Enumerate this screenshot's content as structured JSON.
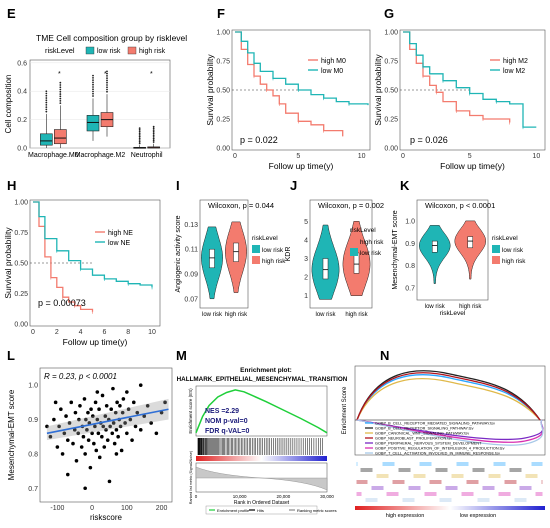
{
  "panel_labels": [
    "E",
    "F",
    "G",
    "H",
    "I",
    "J",
    "K",
    "L",
    "M",
    "N"
  ],
  "colors": {
    "teal": "#1fb5b5",
    "salmon": "#f37b6e",
    "blue": "#2f6fd6",
    "green": "#1fcf3a",
    "red_bar": "#d23a3a",
    "gray_fill": "#c8c8c8"
  },
  "chart_data": [
    {
      "panel": "E",
      "type": "box",
      "title": "TME Cell composition group by risklevel",
      "legend_title": "riskLevel",
      "legend": [
        "low risk",
        "high risk"
      ],
      "ylabel": "Cell composition",
      "categories": [
        "Macrophage.M0",
        "Macrophage.M2",
        "Neutrophil"
      ],
      "yticks": [
        "0.0",
        "0.2",
        "0.4",
        "0.6"
      ],
      "ylim": [
        0,
        0.62
      ],
      "series": [
        {
          "name": "low risk",
          "boxes": [
            {
              "min": 0,
              "q1": 0.02,
              "median": 0.05,
              "q3": 0.1,
              "max": 0.24
            },
            {
              "min": 0.05,
              "q1": 0.12,
              "median": 0.18,
              "q3": 0.23,
              "max": 0.35
            },
            {
              "min": 0,
              "q1": 0,
              "median": 0,
              "q3": 0.005,
              "max": 0.02
            }
          ]
        },
        {
          "name": "high risk",
          "boxes": [
            {
              "min": 0,
              "q1": 0.03,
              "median": 0.07,
              "q3": 0.13,
              "max": 0.3
            },
            {
              "min": 0.08,
              "q1": 0.15,
              "median": 0.2,
              "q3": 0.25,
              "max": 0.38
            },
            {
              "min": 0,
              "q1": 0,
              "median": 0.002,
              "q3": 0.008,
              "max": 0.03
            }
          ]
        }
      ]
    },
    {
      "panel": "F",
      "type": "line",
      "ylabel": "Survival probability",
      "xlabel": "Follow up time(y)",
      "xticks": [
        "0",
        "5",
        "10"
      ],
      "yticks": [
        "0.00",
        "0.25",
        "0.50",
        "0.75",
        "1.00"
      ],
      "xlim": [
        0,
        10.5
      ],
      "ylim": [
        0,
        1
      ],
      "pvalue": "p = 0.022",
      "series": [
        {
          "name": "high M0",
          "color": "salmon",
          "x": [
            0,
            0.5,
            1,
            1.5,
            2,
            2.5,
            3,
            3.5,
            4,
            5,
            6,
            7,
            8.5
          ],
          "y": [
            1,
            0.85,
            0.72,
            0.62,
            0.55,
            0.5,
            0.45,
            0.38,
            0.3,
            0.23,
            0.2,
            0.15,
            0.1
          ]
        },
        {
          "name": "low M0",
          "color": "teal",
          "x": [
            0,
            0.5,
            1,
            1.5,
            2,
            3,
            4,
            5,
            6,
            7,
            8,
            9,
            10.5
          ],
          "y": [
            1,
            0.92,
            0.82,
            0.73,
            0.66,
            0.6,
            0.55,
            0.5,
            0.46,
            0.43,
            0.4,
            0.38,
            0.37
          ]
        }
      ]
    },
    {
      "panel": "G",
      "type": "line",
      "ylabel": "Survival probability",
      "xlabel": "Follow up time(y)",
      "xticks": [
        "0",
        "5",
        "10"
      ],
      "yticks": [
        "0.00",
        "0.25",
        "0.50",
        "0.75",
        "1.00"
      ],
      "xlim": [
        0,
        10.5
      ],
      "ylim": [
        0,
        1
      ],
      "pvalue": "p = 0.026",
      "series": [
        {
          "name": "high M2",
          "color": "salmon",
          "x": [
            0,
            0.5,
            1,
            1.5,
            2,
            2.5,
            3,
            4,
            5,
            6,
            7,
            8
          ],
          "y": [
            1,
            0.85,
            0.73,
            0.62,
            0.54,
            0.48,
            0.4,
            0.32,
            0.28,
            0.25,
            0.25,
            0.22
          ]
        },
        {
          "name": "low M2",
          "color": "teal",
          "x": [
            0,
            0.5,
            1,
            1.5,
            2,
            3,
            4,
            5,
            6,
            7,
            8,
            9,
            10
          ],
          "y": [
            1,
            0.9,
            0.8,
            0.7,
            0.64,
            0.58,
            0.52,
            0.47,
            0.42,
            0.4,
            0.38,
            0.18,
            0.18
          ]
        }
      ]
    },
    {
      "panel": "H",
      "type": "line",
      "ylabel": "Survival probability",
      "xlabel": "Follow up time(y)",
      "xticks": [
        "0",
        "2",
        "4",
        "6",
        "8",
        "10"
      ],
      "yticks": [
        "0.00",
        "0.25",
        "0.50",
        "0.75",
        "1.00"
      ],
      "xlim": [
        0,
        10.5
      ],
      "ylim": [
        0,
        1
      ],
      "pvalue": "p = 0.00073",
      "series": [
        {
          "name": "high NE",
          "color": "salmon",
          "x": [
            0,
            0.5,
            1,
            1.5,
            2,
            2.5,
            3,
            3.5,
            4,
            5
          ],
          "y": [
            1,
            0.8,
            0.55,
            0.38,
            0.3,
            0.22,
            0.18,
            0.15,
            0.12,
            0.1
          ]
        },
        {
          "name": "low NE",
          "color": "teal",
          "x": [
            0,
            0.5,
            1,
            2,
            3,
            4,
            5,
            6,
            7,
            8,
            9,
            10
          ],
          "y": [
            1,
            0.88,
            0.7,
            0.6,
            0.52,
            0.45,
            0.4,
            0.37,
            0.35,
            0.33,
            0.32,
            0.3
          ]
        }
      ]
    },
    {
      "panel": "I",
      "type": "violin",
      "subtitle": "Wilcoxon, p = 0.044",
      "ylabel": "Angiogenic activity score",
      "categories": [
        "low risk",
        "high risk"
      ],
      "legend_title": "riskLevel",
      "legend": [
        "low risk",
        "high risk"
      ],
      "yticks": [
        "0.07",
        "0.09",
        "0.11",
        "0.13"
      ],
      "ylim": [
        0.065,
        0.14
      ],
      "groups": [
        {
          "name": "low risk",
          "median": 0.103,
          "q1": 0.095,
          "q3": 0.11,
          "min": 0.07,
          "max": 0.128
        },
        {
          "name": "high risk",
          "median": 0.108,
          "q1": 0.1,
          "q3": 0.115,
          "min": 0.075,
          "max": 0.132
        }
      ]
    },
    {
      "panel": "J",
      "type": "violin",
      "subtitle": "Wilcoxon, p = 0.002",
      "ylabel": "KDR",
      "categories": [
        "low risk",
        "high risk"
      ],
      "legend_title": "riskLevel",
      "legend": [
        "high risk",
        "low risk"
      ],
      "yticks": [
        "1",
        "2",
        "3",
        "4",
        "5"
      ],
      "ylim": [
        0.5,
        5.5
      ],
      "groups": [
        {
          "name": "low risk",
          "median": 2.4,
          "q1": 1.9,
          "q3": 3.0,
          "min": 0.8,
          "max": 4.8
        },
        {
          "name": "high risk",
          "median": 2.7,
          "q1": 2.2,
          "q3": 3.3,
          "min": 1.0,
          "max": 5.0
        }
      ]
    },
    {
      "panel": "K",
      "type": "violin",
      "subtitle": "Wilcoxon, p < 0.0001",
      "ylabel": "Mesenchymal-EMT score",
      "xlabel": "riskLevel",
      "categories": [
        "low risk",
        "high risk"
      ],
      "legend_title": "riskLevel",
      "legend": [
        "low risk",
        "high risk"
      ],
      "yticks": [
        "0.7",
        "0.8",
        "0.9",
        "1.0"
      ],
      "ylim": [
        0.66,
        1.04
      ],
      "groups": [
        {
          "name": "low risk",
          "median": 0.89,
          "q1": 0.86,
          "q3": 0.91,
          "min": 0.72,
          "max": 0.98
        },
        {
          "name": "high risk",
          "median": 0.91,
          "q1": 0.88,
          "q3": 0.93,
          "min": 0.74,
          "max": 1.0
        }
      ]
    },
    {
      "panel": "L",
      "type": "scatter",
      "annotation": "R = 0.23, p < 0.0001",
      "xlabel": "riskscore",
      "ylabel": "Mesenchymal-EMT score",
      "xticks": [
        "-100",
        "0",
        "100",
        "200"
      ],
      "yticks": [
        "0.7",
        "0.8",
        "0.9",
        "1.0"
      ],
      "xlim": [
        -150,
        230
      ],
      "ylim": [
        0.66,
        1.05
      ],
      "fit": {
        "x": [
          -130,
          220
        ],
        "y": [
          0.86,
          0.93
        ]
      },
      "points": [
        [
          -120,
          0.85
        ],
        [
          -110,
          0.9
        ],
        [
          -100,
          0.82
        ],
        [
          -95,
          0.88
        ],
        [
          -90,
          0.93
        ],
        [
          -85,
          0.8
        ],
        [
          -80,
          0.86
        ],
        [
          -75,
          0.91
        ],
        [
          -70,
          0.84
        ],
        [
          -65,
          0.89
        ],
        [
          -60,
          0.95
        ],
        [
          -55,
          0.83
        ],
        [
          -50,
          0.87
        ],
        [
          -48,
          0.92
        ],
        [
          -45,
          0.78
        ],
        [
          -40,
          0.86
        ],
        [
          -38,
          0.9
        ],
        [
          -35,
          0.94
        ],
        [
          -30,
          0.82
        ],
        [
          -28,
          0.88
        ],
        [
          -25,
          0.85
        ],
        [
          -22,
          0.96
        ],
        [
          -20,
          0.8
        ],
        [
          -18,
          0.9
        ],
        [
          -15,
          0.87
        ],
        [
          -12,
          0.92
        ],
        [
          -10,
          0.84
        ],
        [
          -8,
          0.89
        ],
        [
          -5,
          0.76
        ],
        [
          -3,
          0.93
        ],
        [
          0,
          0.86
        ],
        [
          2,
          0.91
        ],
        [
          5,
          0.83
        ],
        [
          8,
          0.88
        ],
        [
          10,
          0.95
        ],
        [
          12,
          0.81
        ],
        [
          15,
          0.9
        ],
        [
          18,
          0.86
        ],
        [
          20,
          0.93
        ],
        [
          22,
          0.79
        ],
        [
          25,
          0.89
        ],
        [
          28,
          0.85
        ],
        [
          30,
          0.97
        ],
        [
          32,
          0.88
        ],
        [
          35,
          0.82
        ],
        [
          38,
          0.91
        ],
        [
          40,
          0.87
        ],
        [
          42,
          0.94
        ],
        [
          45,
          0.84
        ],
        [
          48,
          0.9
        ],
        [
          50,
          0.72
        ],
        [
          52,
          0.88
        ],
        [
          55,
          0.93
        ],
        [
          58,
          0.86
        ],
        [
          60,
          0.99
        ],
        [
          62,
          0.89
        ],
        [
          65,
          0.83
        ],
        [
          68,
          0.92
        ],
        [
          70,
          0.87
        ],
        [
          72,
          0.95
        ],
        [
          75,
          0.85
        ],
        [
          78,
          0.9
        ],
        [
          80,
          0.94
        ],
        [
          82,
          0.88
        ],
        [
          85,
          0.81
        ],
        [
          88,
          0.92
        ],
        [
          90,
          0.96
        ],
        [
          95,
          0.89
        ],
        [
          100,
          0.86
        ],
        [
          105,
          0.93
        ],
        [
          110,
          0.9
        ],
        [
          115,
          0.84
        ],
        [
          120,
          0.95
        ],
        [
          125,
          0.88
        ],
        [
          130,
          0.92
        ],
        [
          140,
          0.87
        ],
        [
          150,
          0.91
        ],
        [
          160,
          0.94
        ],
        [
          170,
          0.89
        ],
        [
          185,
          0.86
        ],
        [
          200,
          0.92
        ],
        [
          210,
          0.95
        ],
        [
          -130,
          0.88
        ],
        [
          -105,
          0.95
        ],
        [
          -70,
          0.74
        ],
        [
          15,
          0.98
        ],
        [
          100,
          0.98
        ],
        [
          -20,
          0.7
        ],
        [
          70,
          0.8
        ],
        [
          140,
          1.0
        ]
      ]
    },
    {
      "panel": "M",
      "type": "gsea",
      "header": "Enrichment plot:",
      "title": "HALLMARK_EPITHELIAL_MESENCHYMAL_TRANSITION",
      "stats": [
        "NES =2.29",
        "NOM p-val=0",
        "FDR q-VAL=0"
      ],
      "ylabel_top": "Enrichment score (ES)",
      "ylabel_bottom": "Ranked list metric (Signal2Noise)",
      "xlabel": "Rank in Ordered Dataset",
      "xticks": [
        "0",
        "10,000",
        "20,000",
        "30,000"
      ],
      "legend": [
        "Enrichment profile",
        "Hits",
        "Ranking metric scores"
      ],
      "es_curve": {
        "x": [
          0,
          1500,
          3000,
          5000,
          7000,
          9000,
          11000,
          13000,
          16000,
          20000,
          24000,
          28000,
          30000
        ],
        "y": [
          0,
          0.25,
          0.42,
          0.55,
          0.62,
          0.66,
          0.63,
          0.57,
          0.48,
          0.35,
          0.22,
          0.08,
          0
        ]
      }
    },
    {
      "panel": "N",
      "type": "gsea-multi",
      "ylabel": "Enrichment Score",
      "axis_labels": [
        "high expression",
        "low expression"
      ],
      "legend": [
        {
          "name": "GOBP_B_CELL_RECEPTOR_MEDIATED_SIGNALING_PATHWAY.tsv",
          "color": "#2aa6ff"
        },
        {
          "name": "GOBP_B_CELL_RECEPTOR_SIGNALING_PATHWAY.tsv",
          "color": "#222222"
        },
        {
          "name": "GOBP_CANONICAL_WNT_SIGNALING_PATHWAY.tsv",
          "color": "#e0b94a"
        },
        {
          "name": "GOBP_NEUROBLAST_PROLIFERATION.tsv",
          "color": "#b1121c"
        },
        {
          "name": "GOBP_PERIPHERAL_NERVOUS_SYSTEM_DEVELOPMENT",
          "color": "#7a2ac4"
        },
        {
          "name": "GOBP_POSITIVE_REGULATION_OF_INTERLEUKIN_4_PRODUCTION.tsv",
          "color": "#d82fb0"
        },
        {
          "name": "GOBP_T_CELL_ACTIVATION_INVOLVED_IN_IMMUNE_RESPONSE.tsv",
          "color": "#a8c8e8"
        }
      ]
    }
  ]
}
